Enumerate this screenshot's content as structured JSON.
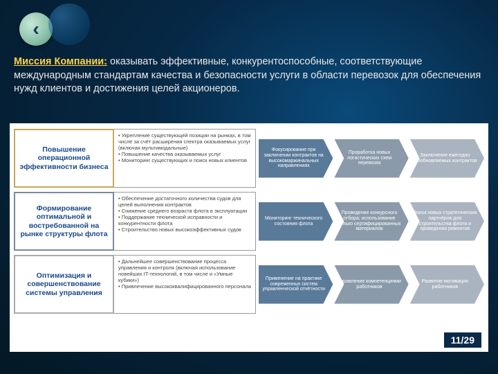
{
  "mission": {
    "label": "Миссия Компании:",
    "text": " оказывать эффективные, конкурентоспособные, соответствующие международным стандартам качества и безопасности услуги в области перевозок для обеспечения нужд клиентов и достижения целей акционеров."
  },
  "colors": {
    "row1_border": "#c4a85a",
    "row1_text": "#1a4a8a",
    "row2_border": "#7a8a9a",
    "row2_text": "#1a4a8a",
    "row3_border": "#aaaaaa",
    "row3_text": "#1a4a8a",
    "arrow1": "#5a7a9a",
    "arrow2": "#8a9aaa",
    "arrow3": "#aab4c0"
  },
  "rows": [
    {
      "title": "Повышение операционной эффективности бизнеса",
      "bullets": [
        "Укрепление существующей позиции на рынках, в том числе за счёт расширения спектра оказываемых услуг (включая мультимодальные)",
        "Повышение качества оказываемых услуг",
        "Мониторинг существующих и поиск новых клиентов"
      ],
      "arrows": [
        "Фокусирование при заключении контрактов на высокомаржинальных направлениях",
        "Проработка новых логистических схем перевозок",
        "Заключение ежегодно возобновляемых контрактов"
      ]
    },
    {
      "title": "Формирование оптимальной и востребованной на рынке структуры флота",
      "bullets": [
        "Обеспечение достаточного количества судов для целей выполнения контрактов",
        "Снижение среднего возраста флота в эксплуатации",
        "Поддержание технической исправности и конкурентности флота",
        "Строительство новых высокоэффективных судов"
      ],
      "arrows": [
        "Мониторинг технического состояния флота",
        "Проведение конкурсного отбора; использование только сертифицированных материалов",
        "Поиск новых стратегических партнёров для строительства флота и проведения ремонтов"
      ]
    },
    {
      "title": "Оптимизация и совершенствование системы управления",
      "bullets": [
        "Дальнейшее совершенствование процесса управления и контроля (включая использование новейших IT-технологий, в том числе и «Умные кубики»)",
        "Привлечение высококвалифицированного персонала"
      ],
      "arrows": [
        "Применение на практике современных систем управленческой отчётности",
        "Управление компетенциями работников",
        "Развитие мотивации работников"
      ]
    }
  ],
  "pagenum": "11/29"
}
